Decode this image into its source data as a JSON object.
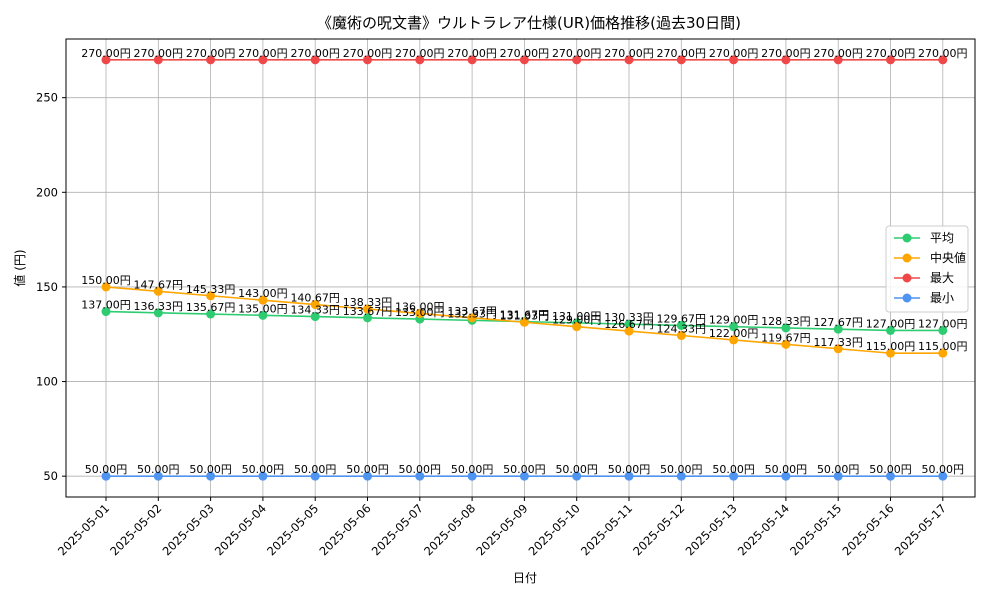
{
  "chart_data": {
    "type": "line",
    "title": "《魔術の呪文書》ウルトラレア仕様(UR)価格推移(過去30日間)",
    "xlabel": "日付",
    "ylabel": "値 (円)",
    "ylim": [
      39,
      281
    ],
    "yticks": [
      50,
      100,
      150,
      200,
      250
    ],
    "grid": true,
    "legend_position": "center-right",
    "categories": [
      "2025-05-01",
      "2025-05-02",
      "2025-05-03",
      "2025-05-04",
      "2025-05-05",
      "2025-05-06",
      "2025-05-07",
      "2025-05-08",
      "2025-05-09",
      "2025-05-10",
      "2025-05-11",
      "2025-05-12",
      "2025-05-13",
      "2025-05-14",
      "2025-05-15",
      "2025-05-16",
      "2025-05-17"
    ],
    "series": [
      {
        "name": "平均",
        "color": "#2ecc71",
        "values": [
          137.0,
          136.33,
          135.67,
          135.0,
          134.33,
          133.67,
          133.0,
          132.33,
          131.67,
          131.0,
          130.33,
          129.67,
          129.0,
          128.33,
          127.67,
          127.0,
          127.0
        ],
        "labels": [
          "137.00円",
          "136.33円",
          "135.67円",
          "135.00円",
          "134.33円",
          "133.67円",
          "133.00円",
          "132.33円",
          "131.67円",
          "131.00円",
          "130.33円",
          "129.67円",
          "129.00円",
          "128.33円",
          "127.67円",
          "127.00円",
          "127.00円"
        ]
      },
      {
        "name": "中央値",
        "color": "#ffa500",
        "values": [
          150.0,
          147.67,
          145.33,
          143.0,
          140.67,
          138.33,
          136.0,
          133.67,
          131.33,
          129.0,
          126.67,
          124.33,
          122.0,
          119.67,
          117.33,
          115.0,
          115.0
        ],
        "labels": [
          "150.00円",
          "147.67円",
          "145.33円",
          "143.00円",
          "140.67円",
          "138.33円",
          "136.00円",
          "133.67円",
          "131.33円",
          "129.00円",
          "126.67円",
          "124.33円",
          "122.00円",
          "119.67円",
          "117.33円",
          "115.00円",
          "115.00円"
        ]
      },
      {
        "name": "最大",
        "color": "#f04848",
        "values": [
          270,
          270,
          270,
          270,
          270,
          270,
          270,
          270,
          270,
          270,
          270,
          270,
          270,
          270,
          270,
          270,
          270
        ],
        "labels": [
          "270.00円",
          "270.00円",
          "270.00円",
          "270.00円",
          "270.00円",
          "270.00円",
          "270.00円",
          "270.00円",
          "270.00円",
          "270.00円",
          "270.00円",
          "270.00円",
          "270.00円",
          "270.00円",
          "270.00円",
          "270.00円",
          "270.00円"
        ]
      },
      {
        "name": "最小",
        "color": "#4f94f0",
        "values": [
          50,
          50,
          50,
          50,
          50,
          50,
          50,
          50,
          50,
          50,
          50,
          50,
          50,
          50,
          50,
          50,
          50
        ],
        "labels": [
          "50.00円",
          "50.00円",
          "50.00円",
          "50.00円",
          "50.00円",
          "50.00円",
          "50.00円",
          "50.00円",
          "50.00円",
          "50.00円",
          "50.00円",
          "50.00円",
          "50.00円",
          "50.00円",
          "50.00円",
          "50.00円",
          "50.00円"
        ]
      }
    ]
  }
}
